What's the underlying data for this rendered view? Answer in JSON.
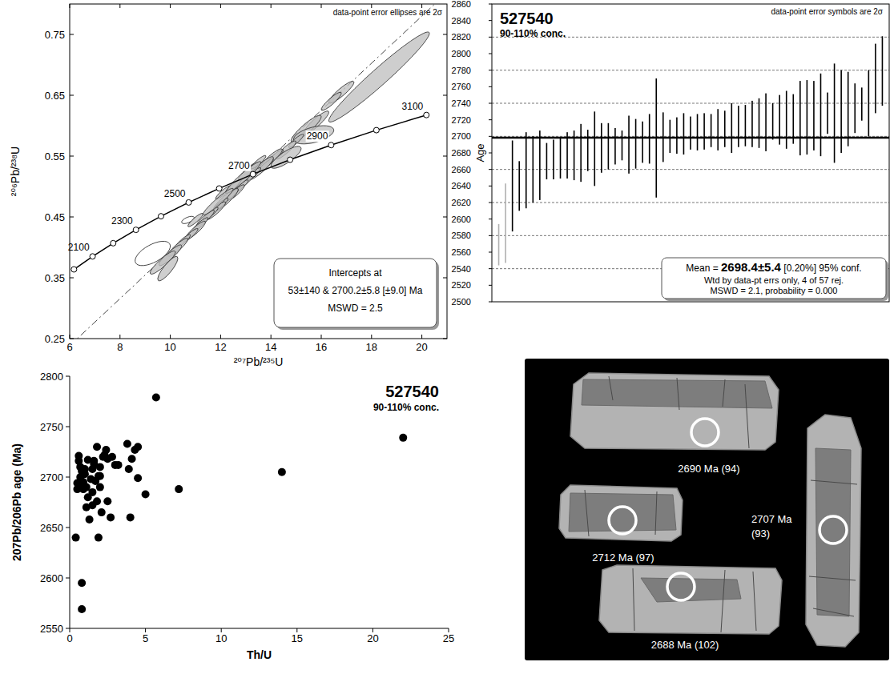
{
  "chart_data": [
    {
      "type": "concordia",
      "title": "data-point error ellipses are 2σ",
      "x_label": "²⁰⁷Pb/²³⁵U",
      "y_label": "²⁰⁶Pb/²³⁸U",
      "xlim": [
        6,
        21
      ],
      "ylim": [
        0.25,
        0.8
      ],
      "xticks": [
        6,
        8,
        10,
        12,
        14,
        16,
        18,
        20
      ],
      "yticks": [
        0.25,
        0.35,
        0.45,
        0.55,
        0.65,
        0.75
      ],
      "x": [
        18.3,
        16.8,
        16.4,
        15.8,
        15.4,
        15.7,
        15.0,
        14.6,
        14.2,
        14.0,
        13.8,
        13.6,
        13.3,
        13.0,
        12.8,
        12.6,
        12.4,
        12.2,
        12.0,
        11.8,
        11.6,
        11.4,
        11.2,
        11.0,
        10.8,
        10.5,
        10.3,
        10.0,
        9.7,
        9.9,
        10.7,
        9.3,
        12.1,
        13.1,
        14.6,
        13.5,
        12.5,
        11.0,
        12.9,
        11.9
      ],
      "y": [
        0.68,
        0.655,
        0.64,
        0.605,
        0.595,
        0.585,
        0.575,
        0.56,
        0.55,
        0.545,
        0.535,
        0.53,
        0.52,
        0.51,
        0.5,
        0.49,
        0.485,
        0.478,
        0.47,
        0.46,
        0.455,
        0.448,
        0.438,
        0.428,
        0.42,
        0.41,
        0.4,
        0.387,
        0.375,
        0.365,
        0.445,
        0.39,
        0.49,
        0.525,
        0.548,
        0.54,
        0.5,
        0.445,
        0.515,
        0.475
      ],
      "x_err": [
        2.0,
        0.5,
        0.4,
        0.5,
        0.6,
        0.8,
        0.3,
        0.4,
        0.3,
        0.45,
        0.3,
        0.5,
        0.3,
        0.4,
        0.3,
        0.35,
        0.3,
        0.5,
        0.3,
        0.4,
        0.3,
        0.35,
        0.3,
        0.4,
        0.3,
        0.3,
        0.4,
        0.45,
        0.5,
        0.4,
        0.25,
        0.7,
        0.3,
        0.4,
        0.6,
        0.3,
        0.3,
        0.3,
        0.7,
        0.6
      ],
      "y_err": [
        0.074,
        0.018,
        0.015,
        0.019,
        0.022,
        0.015,
        0.011,
        0.015,
        0.011,
        0.017,
        0.011,
        0.019,
        0.011,
        0.015,
        0.011,
        0.013,
        0.011,
        0.019,
        0.011,
        0.015,
        0.011,
        0.013,
        0.011,
        0.015,
        0.011,
        0.011,
        0.015,
        0.017,
        0.019,
        0.02,
        0.006,
        0.02,
        0.011,
        0.015,
        0.018,
        0.011,
        0.011,
        0.011,
        0.026,
        0.022
      ],
      "rho": [
        0.97,
        0.9,
        0.9,
        0.9,
        0.9,
        0.5,
        0.9,
        0.9,
        0.9,
        0.9,
        0.9,
        0.9,
        0.9,
        0.9,
        0.9,
        0.9,
        0.9,
        0.9,
        0.9,
        0.9,
        0.9,
        0.9,
        0.9,
        0.9,
        0.9,
        0.9,
        0.9,
        0.9,
        0.9,
        0.85,
        0.6,
        0.6,
        0.9,
        0.9,
        0.8,
        0.9,
        0.9,
        0.9,
        0.95,
        0.95
      ],
      "colors": [
        "#bdbdbd",
        "#bdbdbd",
        "#bdbdbd",
        "#bdbdbd",
        "#bdbdbd",
        "#bdbdbd",
        "#bdbdbd",
        "#bdbdbd",
        "#bdbdbd",
        "#bdbdbd",
        "#bdbdbd",
        "#bdbdbd",
        "#bdbdbd",
        "#bdbdbd",
        "#bdbdbd",
        "#bdbdbd",
        "#bdbdbd",
        "#bdbdbd",
        "#bdbdbd",
        "#bdbdbd",
        "#bdbdbd",
        "#bdbdbd",
        "#bdbdbd",
        "#bdbdbd",
        "#bdbdbd",
        "#bdbdbd",
        "#bdbdbd",
        "#bdbdbd",
        "#bdbdbd",
        "#bdbdbd",
        "#ffffff",
        "#ffffff",
        "#bdbdbd",
        "#bdbdbd",
        "#bdbdbd",
        "#bdbdbd",
        "#bdbdbd",
        "#bdbdbd",
        "#bdbdbd",
        "#bdbdbd"
      ],
      "concordia": {
        "ages": [
          2000,
          2100,
          2200,
          2300,
          2400,
          2500,
          2600,
          2700,
          2800,
          2900,
          3000,
          3100
        ],
        "x": [
          6.169,
          6.91,
          7.729,
          8.633,
          9.63,
          10.73,
          11.944,
          13.284,
          14.762,
          16.393,
          18.193,
          20.18
        ],
        "y": [
          0.3638,
          0.3851,
          0.4068,
          0.4288,
          0.4511,
          0.4738,
          0.4968,
          0.5202,
          0.544,
          0.5681,
          0.5926,
          0.6175
        ],
        "labelled": [
          2100,
          2300,
          2500,
          2700,
          2900,
          3100
        ]
      },
      "discordia": {
        "x": [
          0.0536,
          13.284
        ],
        "y": [
          0.00825,
          0.5202
        ]
      },
      "annotation": [
        "Intercepts at",
        "53±140 & 2700.2±5.8  [±9.0]  Ma",
        "MSWD = 2.5"
      ]
    },
    {
      "type": "weighted_mean",
      "title": "527540",
      "subtitle": "90-110% conc.",
      "note": "data-point error symbols are 2σ",
      "y_label": "Age",
      "xlim": [
        0,
        58
      ],
      "ylim": [
        2500,
        2860
      ],
      "yticks": [
        2500,
        2520,
        2540,
        2560,
        2580,
        2600,
        2620,
        2640,
        2660,
        2680,
        2700,
        2720,
        2740,
        2760,
        2780,
        2800,
        2820,
        2840,
        2860
      ],
      "grid": true,
      "tick_labels": "y",
      "x": [
        1,
        2,
        3,
        4,
        5,
        6,
        7,
        8,
        9,
        10,
        11,
        12,
        13,
        14,
        15,
        16,
        17,
        18,
        19,
        20,
        21,
        22,
        23,
        24,
        25,
        26,
        27,
        28,
        29,
        30,
        31,
        32,
        33,
        34,
        35,
        36,
        37,
        38,
        39,
        40,
        41,
        42,
        43,
        44,
        45,
        46,
        47,
        48,
        49,
        50,
        51,
        52,
        53,
        54,
        55,
        56,
        57
      ],
      "values": [
        2569,
        2595,
        2640,
        2640,
        2659,
        2660,
        2665,
        2670,
        2672,
        2674,
        2677,
        2677,
        2680,
        2683,
        2685,
        2686,
        2688,
        2688,
        2689,
        2690,
        2691,
        2693,
        2697,
        2698,
        2699,
        2700,
        2701,
        2703,
        2704,
        2705,
        2706,
        2707,
        2708,
        2709,
        2710,
        2712,
        2713,
        2715,
        2716,
        2717,
        2718,
        2720,
        2720,
        2721,
        2722,
        2723,
        2725,
        2726,
        2728,
        2728,
        2730,
        2733,
        2734,
        2739,
        2740,
        2770,
        2779
      ],
      "errors": [
        25,
        48,
        55,
        30,
        46,
        40,
        42,
        22,
        24,
        25,
        28,
        30,
        35,
        25,
        45,
        30,
        28,
        22,
        18,
        35,
        30,
        25,
        30,
        72,
        30,
        20,
        22,
        25,
        20,
        22,
        22,
        20,
        25,
        22,
        30,
        25,
        25,
        28,
        30,
        35,
        22,
        30,
        35,
        30,
        45,
        45,
        42,
        50,
        25,
        60,
        50,
        45,
        30,
        20,
        40,
        42,
        42
      ],
      "colors": [
        "#b0b0b0",
        "#b0b0b0",
        "#000000",
        "#000000",
        "#000000",
        "#000000",
        "#000000",
        "#000000",
        "#000000",
        "#000000",
        "#000000",
        "#000000",
        "#000000",
        "#000000",
        "#000000",
        "#000000",
        "#000000",
        "#000000",
        "#000000",
        "#000000",
        "#000000",
        "#000000",
        "#000000",
        "#000000",
        "#000000",
        "#000000",
        "#000000",
        "#000000",
        "#000000",
        "#000000",
        "#000000",
        "#000000",
        "#000000",
        "#000000",
        "#000000",
        "#000000",
        "#000000",
        "#000000",
        "#000000",
        "#000000",
        "#000000",
        "#000000",
        "#000000",
        "#000000",
        "#000000",
        "#000000",
        "#000000",
        "#000000",
        "#000000",
        "#000000",
        "#000000",
        "#000000",
        "#000000",
        "#000000",
        "#000000",
        "#000000",
        "#000000"
      ],
      "mean": 2698.4,
      "annotation": {
        "prefix": "Mean = ",
        "value": "2698.4±5.4",
        "suffix": " [0.20%]  95% conf.",
        "lines": [
          "Wtd by data-pt errs only, 4 of 57 rej.",
          "MSWD = 2.1, probability = 0.000"
        ]
      }
    },
    {
      "type": "scatter",
      "title": "527540",
      "subtitle": "90-110% conc.",
      "x_label": "Th/U",
      "y_label": "207Pb/206Pb age (Ma)",
      "xlim": [
        0,
        25
      ],
      "ylim": [
        2550,
        2800
      ],
      "xticks": [
        0,
        5,
        10,
        15,
        20,
        25
      ],
      "yticks": [
        2550,
        2600,
        2650,
        2700,
        2750,
        2800
      ],
      "color": "#000000",
      "marker": "circle",
      "x": [
        0.4,
        0.5,
        0.5,
        0.6,
        0.6,
        0.7,
        0.7,
        0.8,
        0.8,
        0.8,
        0.9,
        0.9,
        1.0,
        1.0,
        1.1,
        1.1,
        1.2,
        1.3,
        1.4,
        1.5,
        1.5,
        1.6,
        1.6,
        1.7,
        1.8,
        1.8,
        1.9,
        1.9,
        2.0,
        2.0,
        2.1,
        2.2,
        2.3,
        2.4,
        2.5,
        2.5,
        2.7,
        2.8,
        3.2,
        3.8,
        3.9,
        4.0,
        4.1,
        4.3,
        4.5,
        4.5,
        5.0,
        5.7,
        7.2,
        14.0,
        22.0,
        1.2,
        0.7,
        2.0,
        1.5,
        3.0
      ],
      "values": [
        2640,
        2694,
        2688,
        2716,
        2721,
        2693,
        2700,
        2595,
        2569,
        2706,
        2688,
        2695,
        2703,
        2708,
        2690,
        2670,
        2680,
        2658,
        2698,
        2685,
        2708,
        2716,
        2713,
        2696,
        2676,
        2730,
        2640,
        2701,
        2710,
        2690,
        2665,
        2720,
        2722,
        2727,
        2676,
        2718,
        2660,
        2720,
        2712,
        2733,
        2708,
        2660,
        2718,
        2727,
        2730,
        2699,
        2683,
        2779,
        2688,
        2705,
        2739,
        2717,
        2710,
        2701,
        2672,
        2712
      ]
    }
  ],
  "cl_image": {
    "grains": [
      {
        "lines": [
          "2690 Ma (94)"
        ]
      },
      {
        "lines": [
          "2712 Ma (97)"
        ]
      },
      {
        "lines": [
          "2707 Ma",
          "(93)"
        ]
      },
      {
        "lines": [
          "2688 Ma (102)"
        ]
      }
    ]
  }
}
